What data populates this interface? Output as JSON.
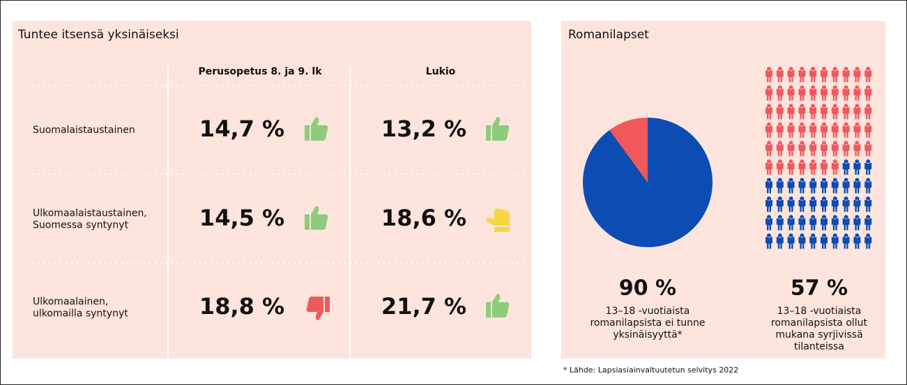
{
  "table": {
    "title": "Tuntee itsensä yksinäiseksi",
    "columns": [
      "Perusopetus 8. ja 9. lk",
      "Lukio"
    ],
    "rows": [
      {
        "label": [
          "Suomalaistaustainen"
        ],
        "cells": [
          "14,7 %",
          "13,2 %"
        ]
      },
      {
        "label": [
          "Ulkomaalaistaustainen,",
          "Suomessa syntynyt"
        ],
        "cells": [
          "14,5 %",
          "18,6 %"
        ]
      },
      {
        "label": [
          "Ulkomaalainen,",
          "ulkomailla syntynyt"
        ],
        "cells": [
          "18,8 %",
          "21,7 %"
        ]
      }
    ]
  },
  "panel_title": "Romanilapset",
  "chart_data": [
    {
      "type": "pie",
      "values": [
        90,
        10
      ],
      "colors": [
        "#0b4db3",
        "#f0585c"
      ],
      "big_label": "90 %",
      "caption": [
        "13–18 -vuotiaista",
        "romanilapsista ei tunne",
        "yksinäisyyttä*"
      ]
    },
    {
      "type": "pictogram",
      "values": [
        57,
        43
      ],
      "colors": [
        "#f0585c",
        "#0b4db3"
      ],
      "columns": 10,
      "big_label": "57 %",
      "caption": [
        "13–18 -vuotiaista",
        "romanilapsista ollut",
        "mukana syrjivissä",
        "tilanteissa"
      ]
    }
  ],
  "footnote": "* Lähde: Lapsiasiainvaltuutetun selvitys 2022"
}
